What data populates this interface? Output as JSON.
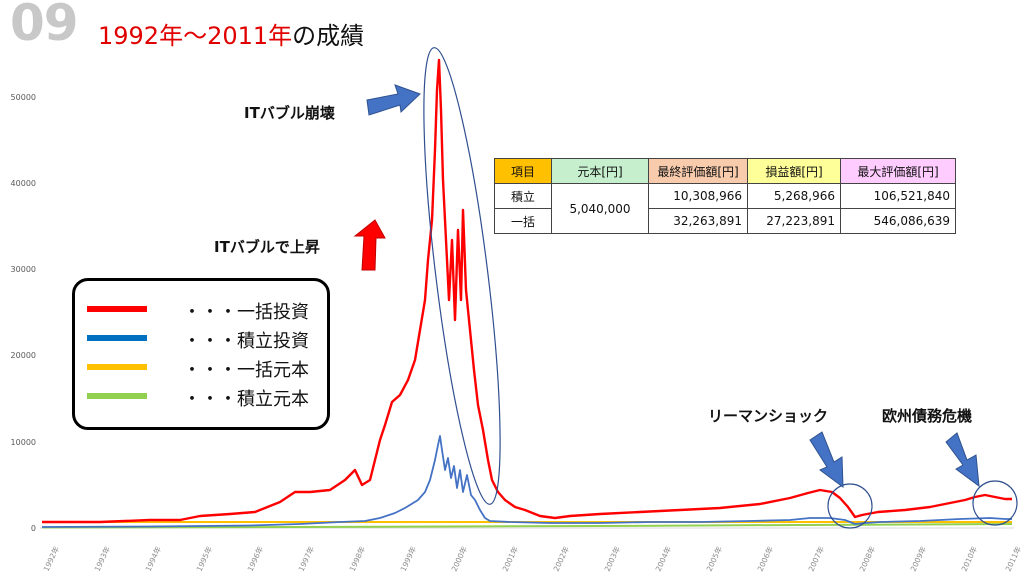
{
  "slide": {
    "number": "09",
    "title_red": "1992年〜2011年",
    "title_rest": "の成績"
  },
  "y_ticks": [
    "0",
    "10000",
    "20000",
    "30000",
    "40000",
    "50000"
  ],
  "x_ticks": [
    "1992年",
    "1993年",
    "1994年",
    "1995年",
    "1996年",
    "1997年",
    "1998年",
    "1999年",
    "2000年",
    "2001年",
    "2002年",
    "2003年",
    "2004年",
    "2005年",
    "2006年",
    "2007年",
    "2008年",
    "2009年",
    "2010年",
    "2011年"
  ],
  "annotations": {
    "bubble_collapse": "ITバブル崩壊",
    "bubble_rise": "ITバブルで上昇",
    "lehman": "リーマンショック",
    "euro_crisis": "欧州債務危機"
  },
  "table": {
    "headers": [
      "項目",
      "元本[円]",
      "最終評価額[円]",
      "損益額[円]",
      "最大評価額[円]"
    ],
    "header_colors": [
      "#ffc000",
      "#c6efce",
      "#f8cbad",
      "#ffff99",
      "#ffccff"
    ],
    "rows": [
      {
        "label": "積立",
        "final": "10,308,966",
        "profit": "5,268,966",
        "max": "106,521,840"
      },
      {
        "label": "一括",
        "final": "32,263,891",
        "profit": "27,223,891",
        "max": "546,086,639"
      }
    ],
    "principal": "5,040,000"
  },
  "legend": [
    {
      "label": "・・・一括投資",
      "color": "#ff0000"
    },
    {
      "label": "・・・積立投資",
      "color": "#0070c0"
    },
    {
      "label": "・・・一括元本",
      "color": "#ffc000"
    },
    {
      "label": "・・・積立元本",
      "color": "#92d050"
    }
  ]
}
